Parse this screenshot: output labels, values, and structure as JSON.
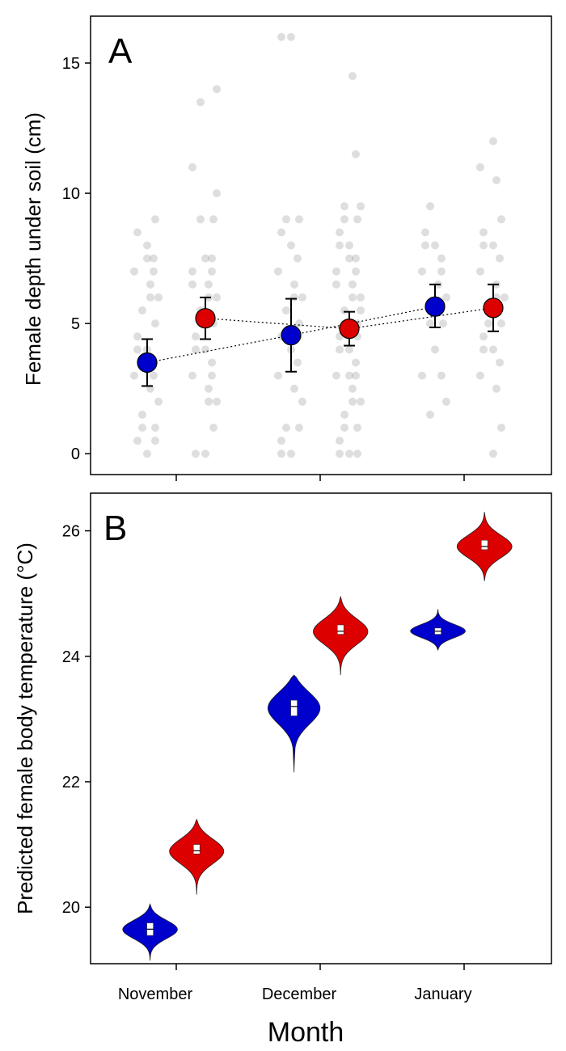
{
  "figure": {
    "x_title": "Month",
    "x_ticks": [
      "November",
      "December",
      "January"
    ]
  },
  "colors": {
    "blue": "#0000cc",
    "red": "#dd0000",
    "jitter": "#8a8a8a",
    "errorbar": "#000000"
  },
  "chart_data": [
    {
      "panel": "A",
      "type": "scatter",
      "ylabel": "Female depth under soil (cm)",
      "ylim": [
        -0.8,
        16.8
      ],
      "yticks": [
        0,
        5,
        10,
        15
      ],
      "categories": [
        "November",
        "December",
        "January"
      ],
      "legend": "none",
      "series": [
        {
          "color": "blue",
          "mean": [
            3.5,
            4.55,
            5.65
          ],
          "lower": [
            2.6,
            3.15,
            4.85
          ],
          "upper": [
            4.4,
            5.95,
            6.5
          ],
          "points": [
            [
              0,
              0.5,
              0.5,
              1,
              1,
              1.5,
              2,
              2.5,
              3,
              3,
              3.5,
              4,
              4,
              4.5,
              5,
              5.5,
              6,
              6,
              6.5,
              7,
              7,
              7.5,
              7.5,
              8,
              8.5,
              9
            ],
            [
              0,
              0,
              0.5,
              1,
              1,
              2,
              2.5,
              3,
              3.5,
              4,
              4.5,
              5,
              5.5,
              6,
              6,
              6.5,
              7,
              7.5,
              8,
              8.5,
              9,
              9,
              16,
              16
            ],
            [
              1.5,
              2,
              3,
              3,
              4,
              5,
              5,
              5.5,
              6,
              6.5,
              7,
              7,
              7.5,
              8,
              8,
              8.5,
              9.5
            ]
          ]
        },
        {
          "color": "red",
          "mean": [
            5.2,
            4.8,
            5.6
          ],
          "lower": [
            4.4,
            4.15,
            4.7
          ],
          "upper": [
            6.0,
            5.45,
            6.5
          ],
          "points": [
            [
              0,
              0,
              1,
              2,
              2,
              2.5,
              3,
              3,
              3.5,
              4,
              4,
              4.5,
              5,
              5,
              5.5,
              6,
              6,
              6.5,
              6.5,
              7,
              7,
              7.5,
              7.5,
              9,
              9,
              10,
              11,
              13.5,
              14
            ],
            [
              0,
              0,
              0,
              0.5,
              1,
              1,
              1.5,
              2,
              2,
              2.5,
              3,
              3,
              3,
              3.5,
              4,
              4,
              4.5,
              4.5,
              5,
              5,
              5.5,
              5.5,
              6,
              6,
              6.5,
              6.5,
              7,
              7,
              7.5,
              7.5,
              8,
              8,
              8.5,
              9,
              9,
              9.5,
              9.5,
              11.5,
              14.5
            ],
            [
              0,
              1,
              2.5,
              3,
              3.5,
              4,
              4,
              4.5,
              5,
              5,
              5.5,
              6,
              6,
              6.5,
              7,
              7.5,
              8,
              8,
              8.5,
              9,
              10.5,
              11,
              12
            ]
          ]
        }
      ],
      "mean_lines": [
        "blue",
        "red"
      ]
    },
    {
      "panel": "B",
      "type": "violin",
      "ylabel": "Predicted female body temperature (°C)",
      "ylim": [
        19.1,
        26.6
      ],
      "yticks": [
        20,
        22,
        24,
        26
      ],
      "categories": [
        "November",
        "December",
        "January"
      ],
      "legend": "none",
      "series": [
        {
          "color": "blue",
          "min": [
            19.15,
            22.15,
            24.1
          ],
          "max": [
            20.05,
            23.7,
            24.75
          ],
          "q1": [
            19.55,
            23.05,
            24.35
          ],
          "median": [
            19.65,
            23.2,
            24.4
          ],
          "q3": [
            19.75,
            23.3,
            24.45
          ]
        },
        {
          "color": "red",
          "min": [
            20.2,
            23.7,
            25.2
          ],
          "max": [
            21.4,
            24.95,
            26.3
          ],
          "q1": [
            20.85,
            24.35,
            25.7
          ],
          "median": [
            20.9,
            24.4,
            25.75
          ],
          "q3": [
            21.0,
            24.5,
            25.85
          ]
        }
      ]
    }
  ]
}
